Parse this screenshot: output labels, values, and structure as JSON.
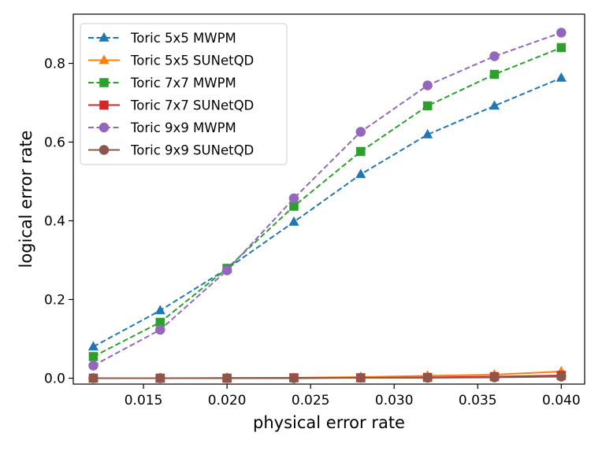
{
  "chart_data": {
    "type": "line",
    "title": "",
    "xlabel": "physical error rate",
    "ylabel": "logical error rate",
    "xlim": [
      0.0108,
      0.0414
    ],
    "ylim": [
      -0.015,
      0.925
    ],
    "grid": false,
    "legend_position": "top-left",
    "x": [
      0.012,
      0.016,
      0.02,
      0.024,
      0.028,
      0.032,
      0.036,
      0.04
    ],
    "x_ticks": [
      0.015,
      0.02,
      0.025,
      0.03,
      0.035,
      0.04
    ],
    "x_tick_labels": [
      "0.015",
      "0.020",
      "0.025",
      "0.030",
      "0.035",
      "0.040"
    ],
    "y_ticks": [
      0.0,
      0.2,
      0.4,
      0.6,
      0.8
    ],
    "y_tick_labels": [
      "0.0",
      "0.2",
      "0.4",
      "0.6",
      "0.8"
    ],
    "series": [
      {
        "name": "Toric 5x5 MWPM",
        "color": "#1f77b4",
        "marker": "triangle",
        "linestyle": "dashed",
        "values": [
          0.08,
          0.172,
          0.278,
          0.397,
          0.518,
          0.619,
          0.692,
          0.763
        ]
      },
      {
        "name": "Toric 5x5 SUNetQD",
        "color": "#ff7f0e",
        "marker": "triangle",
        "linestyle": "solid",
        "values": [
          0.0,
          0.0,
          0.001,
          0.001,
          0.003,
          0.006,
          0.009,
          0.017
        ]
      },
      {
        "name": "Toric 7x7 MWPM",
        "color": "#2ca02c",
        "marker": "square",
        "linestyle": "dashed",
        "values": [
          0.055,
          0.142,
          0.279,
          0.437,
          0.576,
          0.692,
          0.772,
          0.84
        ]
      },
      {
        "name": "Toric 7x7 SUNetQD",
        "color": "#d62728",
        "marker": "square",
        "linestyle": "solid",
        "values": [
          0.0,
          0.0,
          0.0,
          0.001,
          0.001,
          0.002,
          0.004,
          0.007
        ]
      },
      {
        "name": "Toric 9x9 MWPM",
        "color": "#9467bd",
        "marker": "circle",
        "linestyle": "dashed",
        "values": [
          0.032,
          0.123,
          0.274,
          0.457,
          0.626,
          0.744,
          0.818,
          0.878
        ]
      },
      {
        "name": "Toric 9x9 SUNetQD",
        "color": "#8c564b",
        "marker": "circle",
        "linestyle": "solid",
        "values": [
          0.0,
          0.0,
          0.0,
          0.0,
          0.001,
          0.001,
          0.002,
          0.004
        ]
      }
    ]
  }
}
